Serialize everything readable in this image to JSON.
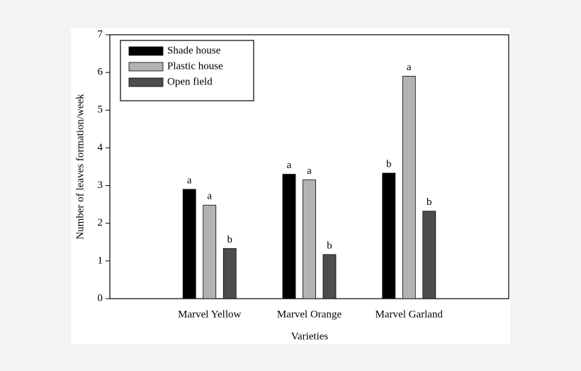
{
  "chart_data": {
    "type": "bar",
    "categories": [
      "Marvel Yellow",
      "Marvel Orange",
      "Marvel Garland"
    ],
    "series": [
      {
        "name": "Shade house",
        "color": "#000000",
        "values": [
          2.9,
          3.3,
          3.33
        ],
        "significance": [
          "a",
          "a",
          "b"
        ]
      },
      {
        "name": "Plastic house",
        "color": "#b3b3b3",
        "values": [
          2.48,
          3.15,
          5.9
        ],
        "significance": [
          "a",
          "a",
          "a"
        ]
      },
      {
        "name": "Open field",
        "color": "#4d4d4d",
        "values": [
          1.33,
          1.17,
          2.32
        ],
        "significance": [
          "b",
          "b",
          "b"
        ]
      }
    ],
    "ylim": [
      0,
      7
    ],
    "yticks": [
      0,
      1,
      2,
      3,
      4,
      5,
      6,
      7
    ],
    "y_label": "Number of leaves formation/week",
    "x_label": "Varieties",
    "legend": "upper left"
  }
}
